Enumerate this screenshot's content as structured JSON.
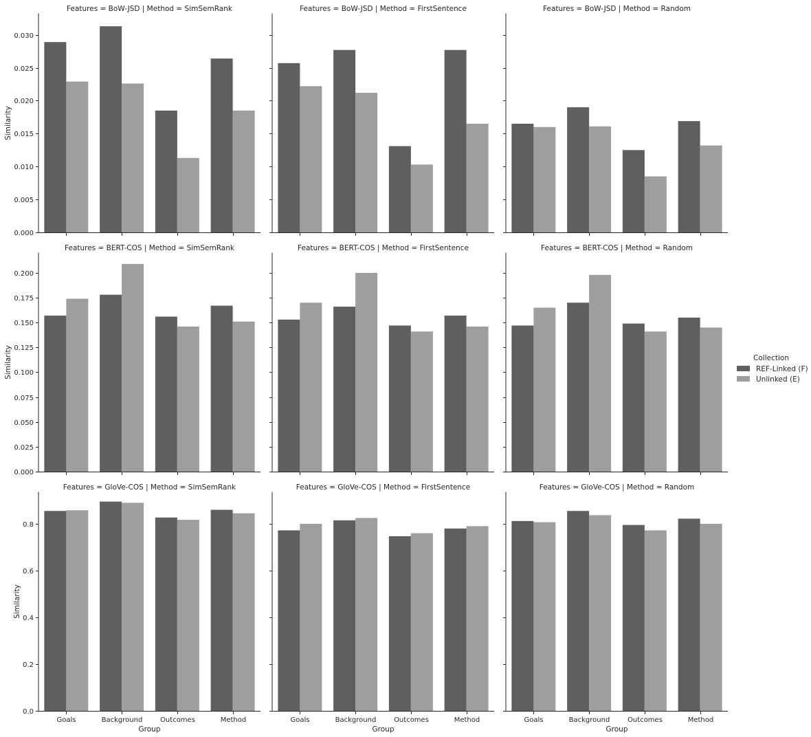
{
  "chart_data": {
    "type": "bar",
    "categories": [
      "Goals",
      "Background",
      "Outcomes",
      "Method"
    ],
    "xlabel": "Group",
    "ylabel": "Similarity",
    "legend": {
      "title": "Collection",
      "position": "right",
      "entries": [
        "REF-Linked (F)",
        "Unlinked (E)"
      ],
      "colors": [
        "#5f5f5f",
        "#9e9e9e"
      ]
    },
    "grid": false,
    "rows": [
      {
        "features": "BoW-JSD",
        "ylim": [
          0,
          0.0332
        ],
        "yticks": [
          0.0,
          0.005,
          0.01,
          0.015,
          0.02,
          0.025,
          0.03
        ],
        "ytick_labels": [
          "0.000",
          "0.005",
          "0.010",
          "0.015",
          "0.020",
          "0.025",
          "0.030"
        ]
      },
      {
        "features": "BERT-COS",
        "ylim": [
          0,
          0.22
        ],
        "yticks": [
          0.0,
          0.025,
          0.05,
          0.075,
          0.1,
          0.125,
          0.15,
          0.175,
          0.2
        ],
        "ytick_labels": [
          "0.000",
          "0.025",
          "0.050",
          "0.075",
          "0.100",
          "0.125",
          "0.150",
          "0.175",
          "0.200"
        ]
      },
      {
        "features": "GloVe-COS",
        "ylim": [
          0,
          0.935
        ],
        "yticks": [
          0.0,
          0.2,
          0.4,
          0.6,
          0.8
        ],
        "ytick_labels": [
          "0.0",
          "0.2",
          "0.4",
          "0.6",
          "0.8"
        ]
      }
    ],
    "panels": [
      {
        "title": "Features = BoW-JSD | Method = SimSemRank",
        "row": 0,
        "col": 0,
        "series": [
          {
            "name": "REF-Linked (F)",
            "values": [
              0.0289,
              0.0313,
              0.0185,
              0.0264
            ]
          },
          {
            "name": "Unlinked (E)",
            "values": [
              0.0229,
              0.0226,
              0.0113,
              0.0185
            ]
          }
        ]
      },
      {
        "title": "Features = BoW-JSD | Method = FirstSentence",
        "row": 0,
        "col": 1,
        "series": [
          {
            "name": "REF-Linked (F)",
            "values": [
              0.0257,
              0.0277,
              0.0131,
              0.0277
            ]
          },
          {
            "name": "Unlinked (E)",
            "values": [
              0.0222,
              0.0212,
              0.0103,
              0.0165
            ]
          }
        ]
      },
      {
        "title": "Features = BoW-JSD | Method = Random",
        "row": 0,
        "col": 2,
        "series": [
          {
            "name": "REF-Linked (F)",
            "values": [
              0.0165,
              0.019,
              0.0125,
              0.0169
            ]
          },
          {
            "name": "Unlinked (E)",
            "values": [
              0.016,
              0.0161,
              0.0085,
              0.0132
            ]
          }
        ]
      },
      {
        "title": "Features = BERT-COS | Method = SimSemRank",
        "row": 1,
        "col": 0,
        "series": [
          {
            "name": "REF-Linked (F)",
            "values": [
              0.157,
              0.178,
              0.156,
              0.167
            ]
          },
          {
            "name": "Unlinked (E)",
            "values": [
              0.174,
              0.209,
              0.146,
              0.151
            ]
          }
        ]
      },
      {
        "title": "Features = BERT-COS | Method = FirstSentence",
        "row": 1,
        "col": 1,
        "series": [
          {
            "name": "REF-Linked (F)",
            "values": [
              0.153,
              0.166,
              0.147,
              0.157
            ]
          },
          {
            "name": "Unlinked (E)",
            "values": [
              0.17,
              0.2,
              0.141,
              0.146
            ]
          }
        ]
      },
      {
        "title": "Features = BERT-COS | Method = Random",
        "row": 1,
        "col": 2,
        "series": [
          {
            "name": "REF-Linked (F)",
            "values": [
              0.147,
              0.17,
              0.149,
              0.155
            ]
          },
          {
            "name": "Unlinked (E)",
            "values": [
              0.165,
              0.198,
              0.141,
              0.145
            ]
          }
        ]
      },
      {
        "title": "Features = GloVe-COS | Method = SimSemRank",
        "row": 2,
        "col": 0,
        "series": [
          {
            "name": "REF-Linked (F)",
            "values": [
              0.855,
              0.895,
              0.827,
              0.86
            ]
          },
          {
            "name": "Unlinked (E)",
            "values": [
              0.858,
              0.89,
              0.817,
              0.845
            ]
          }
        ]
      },
      {
        "title": "Features = GloVe-COS | Method = FirstSentence",
        "row": 2,
        "col": 1,
        "series": [
          {
            "name": "REF-Linked (F)",
            "values": [
              0.772,
              0.815,
              0.747,
              0.78
            ]
          },
          {
            "name": "Unlinked (E)",
            "values": [
              0.8,
              0.825,
              0.76,
              0.79
            ]
          }
        ]
      },
      {
        "title": "Features = GloVe-COS | Method = Random",
        "row": 2,
        "col": 2,
        "series": [
          {
            "name": "REF-Linked (F)",
            "values": [
              0.812,
              0.855,
              0.795,
              0.822
            ]
          },
          {
            "name": "Unlinked (E)",
            "values": [
              0.807,
              0.837,
              0.772,
              0.8
            ]
          }
        ]
      }
    ]
  }
}
